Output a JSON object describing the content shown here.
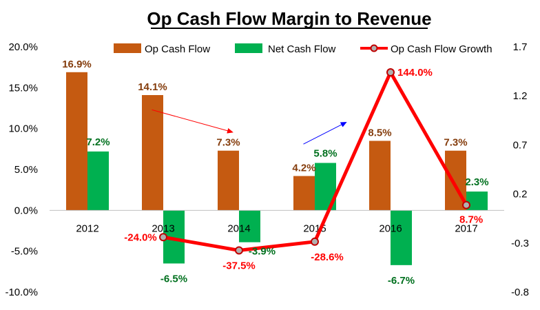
{
  "chart_data": {
    "type": "bar",
    "title": "Op Cash Flow Margin to Revenue",
    "categories": [
      "2012",
      "2013",
      "2014",
      "2015",
      "2016",
      "2017"
    ],
    "series": [
      {
        "name": "Op Cash Flow",
        "kind": "bar",
        "axis": "left",
        "color": "#C55A11",
        "values": [
          16.9,
          14.1,
          7.3,
          4.2,
          8.5,
          7.3
        ],
        "labels": [
          "16.9%",
          "14.1%",
          "7.3%",
          "4.2%",
          "8.5%",
          "7.3%"
        ],
        "label_color": "#843C0C"
      },
      {
        "name": "Net Cash Flow",
        "kind": "bar",
        "axis": "left",
        "color": "#00B050",
        "values": [
          7.2,
          -6.5,
          -3.9,
          5.8,
          -6.7,
          2.3
        ],
        "labels": [
          "7.2%",
          "-6.5%",
          "-3.9%",
          "5.8%",
          "-6.7%",
          "2.3%"
        ],
        "label_color": "#00701E"
      },
      {
        "name": "Op Cash Flow Growth",
        "kind": "line",
        "axis": "right",
        "color": "#FF0000",
        "values": [
          null,
          -0.24,
          -0.375,
          -0.286,
          1.44,
          0.087
        ],
        "labels": [
          null,
          "-24.0%",
          "-37.5%",
          "-28.6%",
          "144.0%",
          "8.7%"
        ],
        "label_color": "#FF0000"
      }
    ],
    "y_left": {
      "min": -10,
      "max": 20,
      "step": 5,
      "tick_labels": [
        "-10.0%",
        "-5.0%",
        "0.0%",
        "5.0%",
        "10.0%",
        "15.0%",
        "20.0%"
      ]
    },
    "y_right": {
      "min": -0.8,
      "max": 1.7,
      "step": 0.5,
      "tick_labels": [
        "-0.8",
        "-0.3",
        "0.2",
        "0.7",
        "1.2",
        "1.7"
      ]
    },
    "legend_position": "top",
    "grid": false,
    "annotations": [
      {
        "type": "arrow",
        "color": "#FF0000",
        "from_category": 0.85,
        "from_value": 12.3,
        "to_category": 1.9,
        "to_value": 9.6
      },
      {
        "type": "arrow",
        "color": "#0000FF",
        "from_category": 2.85,
        "from_value": 8.1,
        "to_category": 3.4,
        "to_value": 10.7
      }
    ]
  }
}
